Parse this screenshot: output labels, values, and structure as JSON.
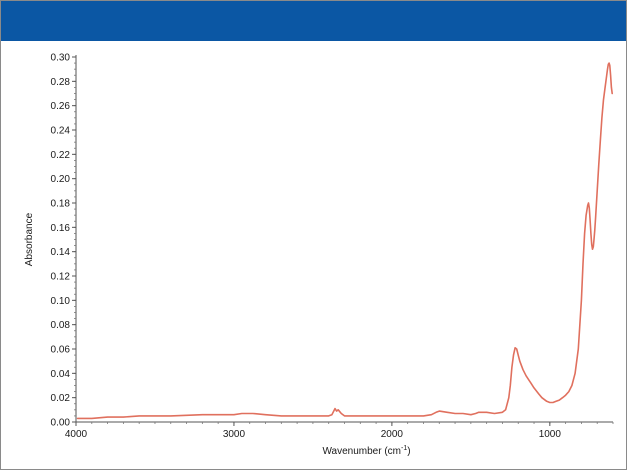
{
  "chart_data": {
    "type": "line",
    "title": "",
    "xlabel": "Wavenumber (cm",
    "xlabel_superscript": "-1",
    "xlabel_suffix": ")",
    "ylabel": "Absorbance",
    "xlim": [
      4000,
      600
    ],
    "ylim": [
      0,
      0.3
    ],
    "x_reversed": true,
    "grid": false,
    "legend": "none",
    "x_ticks": [
      4000,
      3000,
      2000,
      1000
    ],
    "x_tick_labels": [
      "4000",
      "3000",
      "2000",
      "1000"
    ],
    "y_ticks": [
      0,
      0.02,
      0.04,
      0.06,
      0.08,
      0.1,
      0.12,
      0.14,
      0.16,
      0.18,
      0.2,
      0.22,
      0.24,
      0.26,
      0.28,
      0.3
    ],
    "y_tick_labels": [
      "0.00",
      "0.02",
      "0.04",
      "0.06",
      "0.08",
      "0.10",
      "0.12",
      "0.14",
      "0.16",
      "0.18",
      "0.20",
      "0.22",
      "0.24",
      "0.26",
      "0.28",
      "0.30"
    ],
    "series": [
      {
        "color": "#e0705e",
        "x": [
          3990,
          3900,
          3800,
          3700,
          3600,
          3400,
          3200,
          3000,
          2950,
          2920,
          2880,
          2800,
          2700,
          2600,
          2500,
          2400,
          2380,
          2360,
          2350,
          2340,
          2320,
          2300,
          2250,
          2200,
          2000,
          1900,
          1800,
          1750,
          1720,
          1700,
          1650,
          1600,
          1550,
          1500,
          1470,
          1450,
          1400,
          1350,
          1300,
          1280,
          1260,
          1250,
          1240,
          1230,
          1220,
          1210,
          1200,
          1190,
          1170,
          1150,
          1120,
          1100,
          1070,
          1050,
          1020,
          1000,
          980,
          960,
          940,
          920,
          900,
          880,
          860,
          840,
          820,
          800,
          790,
          780,
          770,
          760,
          755,
          750,
          745,
          740,
          735,
          730,
          725,
          720,
          715,
          710,
          700,
          690,
          680,
          670,
          660,
          650,
          640,
          635,
          630,
          625,
          620,
          615,
          610,
          605
        ],
        "y": [
          0.003,
          0.003,
          0.004,
          0.004,
          0.005,
          0.005,
          0.006,
          0.006,
          0.007,
          0.007,
          0.007,
          0.006,
          0.005,
          0.005,
          0.005,
          0.005,
          0.006,
          0.011,
          0.009,
          0.01,
          0.007,
          0.005,
          0.005,
          0.005,
          0.005,
          0.005,
          0.005,
          0.006,
          0.008,
          0.009,
          0.008,
          0.007,
          0.007,
          0.006,
          0.007,
          0.008,
          0.008,
          0.007,
          0.008,
          0.01,
          0.02,
          0.03,
          0.045,
          0.055,
          0.061,
          0.06,
          0.055,
          0.05,
          0.043,
          0.038,
          0.032,
          0.028,
          0.023,
          0.02,
          0.017,
          0.016,
          0.016,
          0.017,
          0.018,
          0.02,
          0.022,
          0.025,
          0.03,
          0.04,
          0.06,
          0.1,
          0.13,
          0.155,
          0.17,
          0.178,
          0.18,
          0.176,
          0.166,
          0.155,
          0.146,
          0.142,
          0.144,
          0.15,
          0.158,
          0.168,
          0.19,
          0.212,
          0.232,
          0.25,
          0.265,
          0.275,
          0.285,
          0.29,
          0.294,
          0.295,
          0.293,
          0.285,
          0.275,
          0.27
        ]
      }
    ]
  }
}
